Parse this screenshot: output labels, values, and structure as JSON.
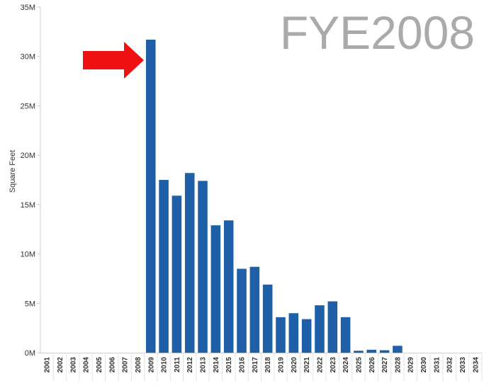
{
  "chart_data": {
    "type": "bar",
    "title": "FYE2008",
    "ylabel": "Square Feet",
    "xlabel": "",
    "ylim": [
      0,
      35000000
    ],
    "ytick_values": [
      0,
      5000000,
      10000000,
      15000000,
      20000000,
      25000000,
      30000000,
      35000000
    ],
    "ytick_labels": [
      "0M",
      "5M",
      "10M",
      "15M",
      "20M",
      "25M",
      "30M",
      "35M"
    ],
    "categories": [
      "2001",
      "2002",
      "2003",
      "2004",
      "2005",
      "2006",
      "2007",
      "2008",
      "2009",
      "2010",
      "2011",
      "2012",
      "2013",
      "2014",
      "2015",
      "2016",
      "2017",
      "2018",
      "2019",
      "2020",
      "2021",
      "2022",
      "2023",
      "2024",
      "2025",
      "2026",
      "2027",
      "2028",
      "2029",
      "2030",
      "2031",
      "2032",
      "2033",
      "2034"
    ],
    "values": [
      0,
      0,
      0,
      0,
      0,
      0,
      0,
      0,
      31700000,
      17500000,
      15900000,
      18200000,
      17400000,
      12900000,
      13400000,
      8500000,
      8700000,
      6900000,
      3600000,
      4000000,
      3400000,
      4800000,
      5200000,
      3600000,
      200000,
      300000,
      250000,
      700000,
      0,
      0,
      0,
      0,
      0,
      0
    ],
    "bar_color": "#1f5fa8",
    "grid": false,
    "annotation": {
      "type": "arrow",
      "points_to": "2009",
      "color": "#ee1111"
    }
  }
}
